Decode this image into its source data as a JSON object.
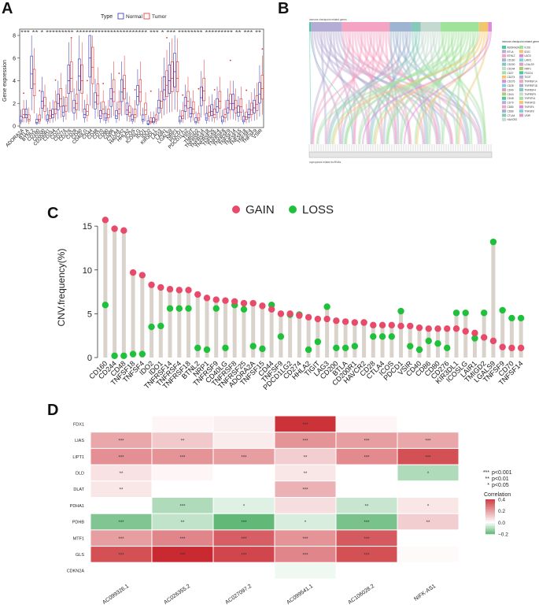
{
  "figure": {
    "panel_labels": [
      "A",
      "B",
      "C",
      "D"
    ]
  },
  "chart_data": [
    {
      "panel": "A",
      "type": "box",
      "ylabel": "Gene expression",
      "ylim": [
        0,
        8
      ],
      "yticks": [
        0,
        2,
        4,
        6,
        8
      ],
      "legend_title": "Type",
      "legend": [
        "Normal",
        "Tumor"
      ],
      "colors": {
        "Normal": "#2f2fbf",
        "Tumor": "#e0312f"
      },
      "significance_row": "*** ** *  ********* *********************** *** * *** ********  ********* ** *** **",
      "categories": [
        "ADORA2A",
        "BTLA",
        "BTNL2",
        "CD160",
        "CD200",
        "CD200R1",
        "CD244",
        "CD27",
        "CD274",
        "CD276",
        "CD28",
        "CD40",
        "CD40LG",
        "CD44",
        "CD48",
        "CD70",
        "CD80",
        "CD86",
        "CTLA4",
        "HAVCR2",
        "HHLA2",
        "ICOS",
        "ICOSLG",
        "IDO1",
        "IDO2",
        "KIR3DL1",
        "LAG3",
        "LAIR1",
        "LGALS9",
        "NRP1",
        "PDCD1",
        "PDCD1LG2",
        "TIGIT",
        "TMIGD2",
        "TNFRSF14",
        "TNFRSF18",
        "TNFRSF25",
        "TNFRSF4",
        "TNFRSF8",
        "TNFRSF9",
        "TNFSF14",
        "TNFSF15",
        "TNFSF18",
        "TNFSF4",
        "TNFSF9",
        "VSIR"
      ],
      "normal_median": [
        0.5,
        1.0,
        4.6,
        0.3,
        2.2,
        0.6,
        1.0,
        2.0,
        1.2,
        4.0,
        1.6,
        4.4,
        1.0,
        6.0,
        2.1,
        0.9,
        0.7,
        2.4,
        0.9,
        3.0,
        1.4,
        0.6,
        2.6,
        0.6,
        0.2,
        0.4,
        1.6,
        3.2,
        4.0,
        4.8,
        0.5,
        1.8,
        1.1,
        0.4,
        2.5,
        0.7,
        1.3,
        1.7,
        0.5,
        1.6,
        2.0,
        1.2,
        0.5,
        1.0,
        1.6,
        2.8
      ],
      "tumor_median": [
        1.0,
        0.6,
        3.7,
        0.6,
        1.8,
        0.9,
        1.5,
        2.4,
        1.8,
        4.2,
        2.0,
        4.0,
        1.3,
        5.2,
        2.7,
        1.5,
        1.0,
        3.0,
        1.5,
        3.3,
        1.2,
        1.0,
        3.0,
        1.4,
        0.4,
        0.6,
        2.2,
        3.6,
        4.2,
        4.2,
        0.9,
        2.2,
        1.5,
        0.7,
        3.1,
        1.2,
        1.0,
        2.2,
        1.0,
        2.0,
        1.6,
        1.7,
        0.8,
        1.4,
        1.9,
        3.3
      ]
    },
    {
      "panel": "B",
      "type": "sankey",
      "left_title": "immune checkpoint related genes",
      "legend_title": "immune checkpoint related genes",
      "bottom_label": "cuproptosis related lncRNAs",
      "legend_items": [
        "ADORA2A",
        "BTLA",
        "BTNL2",
        "CD160",
        "CD200",
        "CD244",
        "CD27",
        "CD274",
        "CD276",
        "CD28",
        "CD40",
        "CD44",
        "CD48",
        "CD70",
        "CD80",
        "CD86",
        "CTLA4",
        "HAVCR2",
        "ICOS",
        "IDO1",
        "LAG3",
        "LAIR1",
        "LGALS9",
        "NRP1",
        "PDCD1",
        "TIGIT",
        "TNFRSF14",
        "TNFRSF18",
        "TNFRSF4",
        "TNFRSF9",
        "TNFSF14",
        "TNFSF15",
        "TNFSF4",
        "TNFSF9",
        "VSIR"
      ],
      "top_segments": [
        {
          "color": "#4cc7a4",
          "share": 0.01
        },
        {
          "color": "#b5aed4",
          "share": 0.17
        },
        {
          "color": "#f4a3c3",
          "share": 0.26
        },
        {
          "color": "#9eb4d1",
          "share": 0.12
        },
        {
          "color": "#86c9bb",
          "share": 0.05
        },
        {
          "color": "#c4d9cf",
          "share": 0.11
        },
        {
          "color": "#9fe39b",
          "share": 0.21
        },
        {
          "color": "#f3c66e",
          "share": 0.05
        },
        {
          "color": "#e08adb",
          "share": 0.02
        }
      ]
    },
    {
      "panel": "C",
      "type": "lollipop",
      "ylabel": "CNV.frequency(%)",
      "ylim": [
        0,
        16
      ],
      "yticks": [
        0,
        5,
        10,
        15
      ],
      "legend": [
        "GAIN",
        "LOSS"
      ],
      "colors": {
        "GAIN": "#e84a6a",
        "LOSS": "#1fc13a"
      },
      "categories": [
        "CD160",
        "CD244",
        "CD48",
        "TNFSF18",
        "TNFSF4",
        "IDO2",
        "IDO1",
        "TNFRSF14",
        "TNFRSF4",
        "TNFRSF18",
        "BTNL2",
        "NRP1",
        "TNFRSF9",
        "CD40LG",
        "TNFRSF8",
        "TNFRSF25",
        "ADORA2A",
        "TNFSF15",
        "CD44",
        "TNFSF9",
        "PDCD1LG2",
        "CD274",
        "HHLA2",
        "TIGIT",
        "LAG3",
        "CD200",
        "BTLA",
        "CD200R1",
        "HAVCR2",
        "CD28",
        "CTLA4",
        "ICOS",
        "PDCD1",
        "VSIR",
        "CD40",
        "CD86",
        "CD80",
        "CD276",
        "KIR3DL1",
        "ICOSLG",
        "LAIR1",
        "TMIGD2",
        "LGALS9",
        "TNFSF9",
        "CD70",
        "TNFSF14"
      ],
      "gain": [
        15.7,
        14.7,
        14.5,
        9.7,
        9.4,
        8.3,
        8.0,
        7.8,
        7.7,
        7.7,
        7.2,
        6.8,
        6.6,
        6.5,
        6.4,
        6.2,
        6.2,
        5.9,
        5.5,
        5.0,
        5.0,
        4.8,
        4.6,
        4.4,
        4.4,
        4.2,
        4.1,
        4.0,
        4.0,
        3.7,
        3.7,
        3.7,
        3.6,
        3.6,
        3.4,
        3.3,
        3.3,
        3.3,
        3.3,
        3.0,
        2.8,
        2.3,
        1.9,
        1.2,
        1.1,
        1.1
      ],
      "loss": [
        6.0,
        0.2,
        0.2,
        0.4,
        0.4,
        3.5,
        3.6,
        5.6,
        5.6,
        5.6,
        1.1,
        0.9,
        5.6,
        1.1,
        6.0,
        5.5,
        1.3,
        1.0,
        6.0,
        2.4,
        4.9,
        4.9,
        0.9,
        1.8,
        5.8,
        1.1,
        1.1,
        1.3,
        4.0,
        2.4,
        2.4,
        2.4,
        5.3,
        1.3,
        0.9,
        1.9,
        1.6,
        1.1,
        5.1,
        5.1,
        2.2,
        5.1,
        13.2,
        5.4,
        4.5,
        4.5
      ]
    },
    {
      "panel": "D",
      "type": "heatmap",
      "rows": [
        "FDX1",
        "LIAS",
        "LIPT1",
        "DLD",
        "DLAT",
        "PDHA1",
        "PDHB",
        "MTF1",
        "GLS",
        "CDKN2A"
      ],
      "cols": [
        "AC099326.1",
        "AC026355.2",
        "AC027097.2",
        "AC099541.1",
        "AC106028.2",
        "NIFK-AS1"
      ],
      "values": [
        [
          0.0,
          0.02,
          0.03,
          0.42,
          0.02,
          0.0
        ],
        [
          0.18,
          0.11,
          0.04,
          0.22,
          0.2,
          0.18
        ],
        [
          0.23,
          0.22,
          0.2,
          0.1,
          0.24,
          0.36
        ],
        [
          0.06,
          0.02,
          0.0,
          0.05,
          0.0,
          -0.1
        ],
        [
          0.05,
          0.0,
          0.0,
          0.16,
          0.0,
          0.0
        ],
        [
          0.0,
          -0.1,
          -0.04,
          0.07,
          -0.07,
          0.05
        ],
        [
          -0.16,
          -0.08,
          -0.2,
          -0.05,
          -0.17,
          0.1
        ],
        [
          0.2,
          0.25,
          0.33,
          0.22,
          0.34,
          0.0
        ],
        [
          0.36,
          0.44,
          0.38,
          0.25,
          0.36,
          0.01
        ],
        [
          0.0,
          0.0,
          0.0,
          -0.02,
          0.0,
          0.0
        ]
      ],
      "stars": [
        [
          "",
          "",
          "",
          "***",
          "",
          ""
        ],
        [
          "***",
          "**",
          "",
          "***",
          "***",
          "***"
        ],
        [
          "***",
          "***",
          "***",
          "**",
          "***",
          "***"
        ],
        [
          "**",
          "",
          "",
          "**",
          "",
          "*"
        ],
        [
          "**",
          "",
          "",
          "***",
          "",
          ""
        ],
        [
          "",
          "***",
          "*",
          "",
          "**",
          "*"
        ],
        [
          "***",
          "**",
          "***",
          "*",
          "***",
          "**"
        ],
        [
          "***",
          "***",
          "***",
          "***",
          "***",
          ""
        ],
        [
          "***",
          "***",
          "***",
          "***",
          "***",
          ""
        ],
        [
          "",
          "",
          "",
          "",
          "",
          ""
        ]
      ],
      "significance_legend": [
        {
          "stars": "***",
          "label": "p<0.001"
        },
        {
          "stars": "**",
          "label": "p<0.01"
        },
        {
          "stars": "*",
          "label": "p<0.05"
        }
      ],
      "colorbar_title": "Correlation",
      "colorbar_ticks": [
        0.4,
        0.2,
        0.0,
        -0.2
      ],
      "colorbar_tick_labels": [
        "0.4",
        "0.2",
        "0.0",
        "−0.2"
      ],
      "colors": {
        "high": "#c8242b",
        "mid": "#ffffff",
        "low": "#3aa655"
      }
    }
  ]
}
